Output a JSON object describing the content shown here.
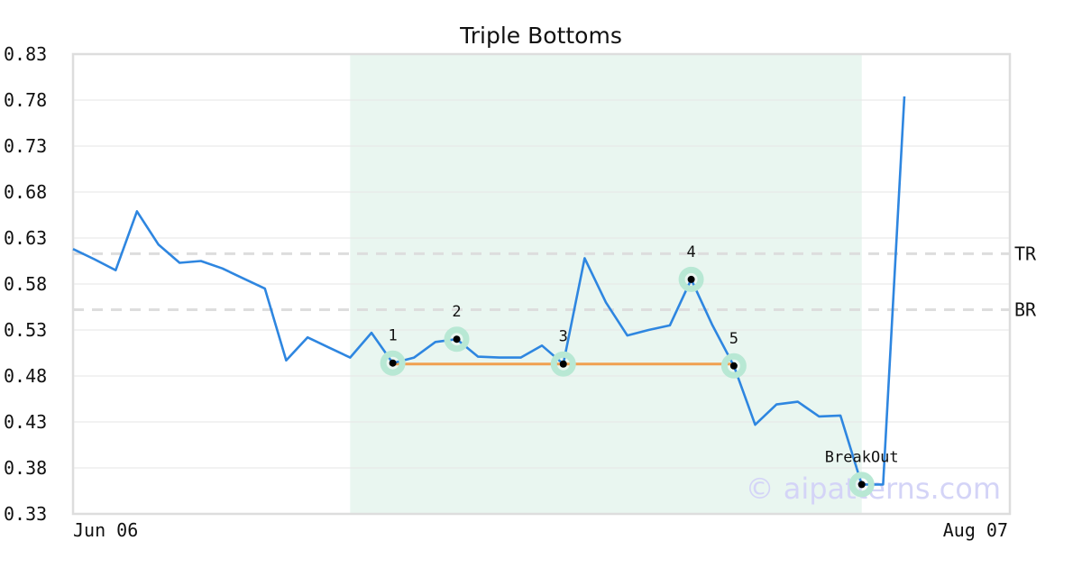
{
  "chart_data": {
    "type": "line",
    "title": "Triple Bottoms",
    "xlabel": "",
    "ylabel": "",
    "ylim": [
      0.33,
      0.83
    ],
    "y_ticks": [
      "0.83",
      "0.78",
      "0.73",
      "0.68",
      "0.63",
      "0.58",
      "0.53",
      "0.48",
      "0.43",
      "0.38",
      "0.33"
    ],
    "x_tick_labels": [
      "Jun 06",
      "Aug 07"
    ],
    "grid": true,
    "series": [
      {
        "color": "#2e86e0",
        "values": [
          0.618,
          0.607,
          0.595,
          0.659,
          0.623,
          0.603,
          0.605,
          0.597,
          0.586,
          0.575,
          0.497,
          0.522,
          0.511,
          0.5,
          0.527,
          0.494,
          0.5,
          0.517,
          0.52,
          0.501,
          0.5,
          0.5,
          0.513,
          0.493,
          0.608,
          0.56,
          0.524,
          0.53,
          0.535,
          0.585,
          0.535,
          0.491,
          0.427,
          0.449,
          0.452,
          0.436,
          0.437,
          0.362,
          0.362,
          0.784
        ]
      }
    ],
    "pattern": {
      "name": "Triple Bottoms",
      "shaded_range": [
        13,
        37
      ],
      "shade_color": "#e9f6f0",
      "points": [
        {
          "label": "1",
          "index": 15,
          "value": 0.494
        },
        {
          "label": "2",
          "index": 18,
          "value": 0.52
        },
        {
          "label": "3",
          "index": 23,
          "value": 0.493
        },
        {
          "label": "4",
          "index": 29,
          "value": 0.585
        },
        {
          "label": "5",
          "index": 31,
          "value": 0.491
        },
        {
          "label": "BreakOut",
          "index": 37,
          "value": 0.362
        }
      ],
      "bottom_line": {
        "from_index": 15,
        "to_index": 31,
        "value": 0.493,
        "color": "#f0a050"
      },
      "levels": [
        {
          "label": "TR",
          "value": 0.613
        },
        {
          "label": "BR",
          "value": 0.552
        }
      ],
      "marker_ring_color": "#b8e8d4"
    },
    "watermark": "© aipatterns.com"
  }
}
